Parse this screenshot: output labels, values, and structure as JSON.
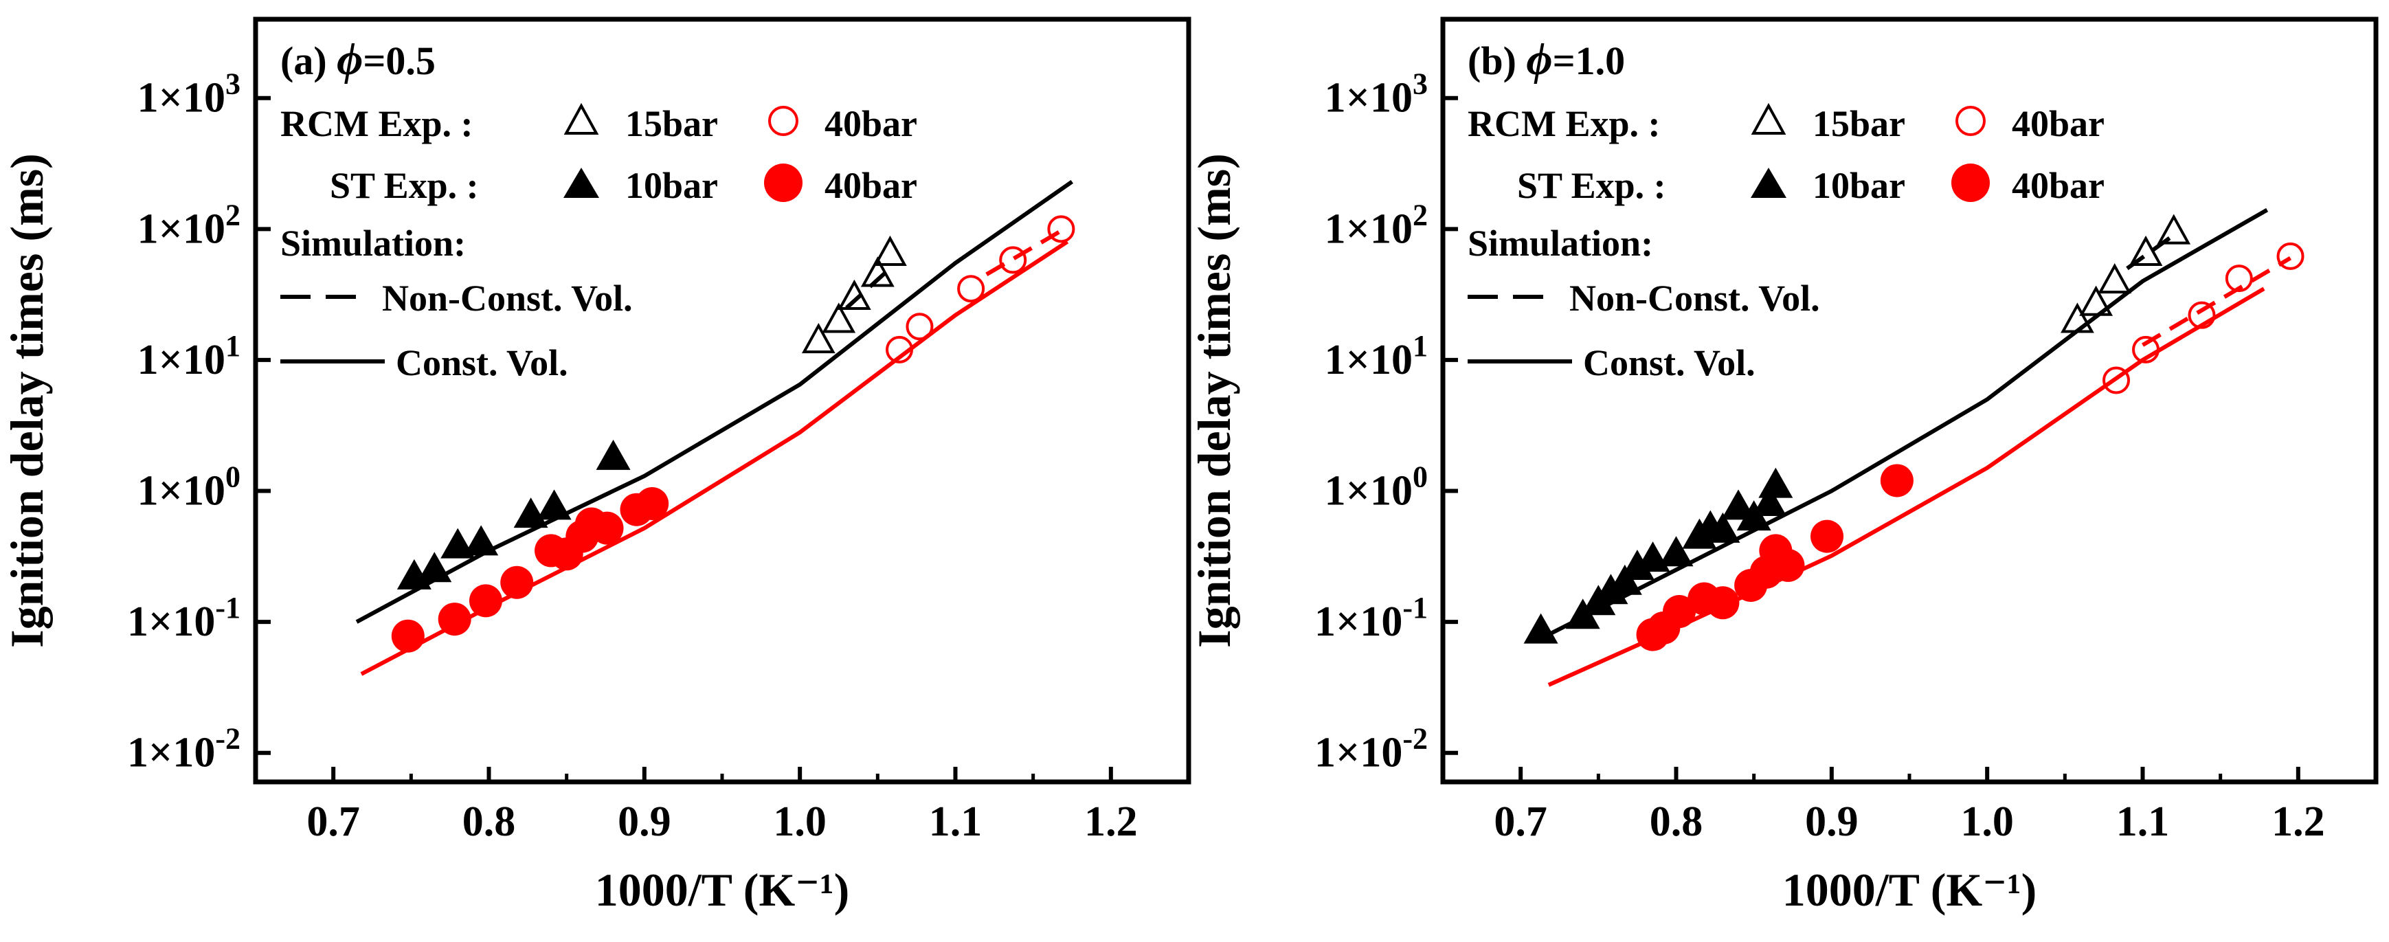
{
  "colors": {
    "black": "#000000",
    "red": "#ff0000",
    "background": "#ffffff"
  },
  "shared_ylabel": "Ignition delay times (ms)",
  "panels": [
    {
      "label_prefix": "(a) ",
      "phi_symbol": "ϕ",
      "phi_value": "=0.5",
      "legend": {
        "rcm_label": "RCM  Exp. :",
        "st_label": "ST  Exp. :",
        "rcm_15": "15bar",
        "rcm_40": "40bar",
        "st_10": "10bar",
        "st_40": "40bar",
        "simulation_title": "Simulation:",
        "nonconst_label": "Non-Const. Vol.",
        "const_label": "Const. Vol."
      }
    },
    {
      "label_prefix": "(b) ",
      "phi_symbol": "ϕ",
      "phi_value": "=1.0",
      "legend": {
        "rcm_label": "RCM  Exp. :",
        "st_label": "ST  Exp. :",
        "rcm_15": "15bar",
        "rcm_40": "40bar",
        "st_10": "10bar",
        "st_40": "40bar",
        "simulation_title": "Simulation:",
        "nonconst_label": "Non-Const. Vol.",
        "const_label": "Const. Vol."
      }
    }
  ],
  "chart_data": [
    {
      "type": "scatter",
      "title": "(a) ϕ=0.5",
      "xlabel": "1000/T (K⁻¹)",
      "ylabel": "Ignition delay times (ms)",
      "xlim": [
        0.65,
        1.25
      ],
      "ylim": [
        0.006,
        4000
      ],
      "yscale": "log",
      "xticks": [
        "0.7",
        "0.8",
        "0.9",
        "1.0",
        "1.1",
        "1.2"
      ],
      "yticks": [
        {
          "value": 0.01,
          "base": "1×10",
          "exp": "-2"
        },
        {
          "value": 0.1,
          "base": "1×10",
          "exp": "-1"
        },
        {
          "value": 1,
          "base": "1×10",
          "exp": "0"
        },
        {
          "value": 10,
          "base": "1×10",
          "exp": "1"
        },
        {
          "value": 100,
          "base": "1×10",
          "exp": "2"
        },
        {
          "value": 1000,
          "base": "1×10",
          "exp": "3"
        }
      ],
      "series": [
        {
          "name": "RCM Exp. 15bar",
          "marker": "triangle-open",
          "color": "#000000",
          "x": [
            1.012,
            1.025,
            1.035,
            1.05,
            1.058
          ],
          "y": [
            14,
            20,
            30,
            45,
            65
          ]
        },
        {
          "name": "RCM Exp. 40bar",
          "marker": "circle-open",
          "color": "#ff0000",
          "x": [
            1.064,
            1.077,
            1.11,
            1.137,
            1.168
          ],
          "y": [
            12,
            18,
            35,
            58,
            100
          ]
        },
        {
          "name": "ST Exp. 10bar",
          "marker": "triangle-filled",
          "color": "#000000",
          "x": [
            0.752,
            0.765,
            0.78,
            0.795,
            0.827,
            0.842,
            0.88
          ],
          "y": [
            0.22,
            0.25,
            0.38,
            0.4,
            0.65,
            0.75,
            1.8
          ]
        },
        {
          "name": "ST Exp. 40bar",
          "marker": "circle-filled",
          "color": "#ff0000",
          "x": [
            0.748,
            0.778,
            0.798,
            0.818,
            0.84,
            0.85,
            0.86,
            0.866,
            0.876,
            0.895,
            0.905
          ],
          "y": [
            0.078,
            0.105,
            0.145,
            0.2,
            0.35,
            0.33,
            0.45,
            0.56,
            0.52,
            0.72,
            0.8
          ]
        },
        {
          "name": "Const. Vol. (black)",
          "marker": "line-solid",
          "color": "#000000",
          "x": [
            0.715,
            0.8,
            0.9,
            1.0,
            1.1,
            1.175
          ],
          "y": [
            0.1,
            0.35,
            1.3,
            6.5,
            55,
            230
          ]
        },
        {
          "name": "Const. Vol. (red)",
          "marker": "line-solid",
          "color": "#ff0000",
          "x": [
            0.718,
            0.8,
            0.9,
            1.0,
            1.1,
            1.172
          ],
          "y": [
            0.04,
            0.13,
            0.52,
            2.8,
            22,
            80
          ]
        },
        {
          "name": "Non-Const. Vol. (black)",
          "marker": "line-dashed",
          "color": "#000000",
          "x": [
            1.03,
            1.058
          ],
          "y": [
            25,
            50
          ]
        },
        {
          "name": "Non-Const. Vol. (red)",
          "marker": "line-dashed",
          "color": "#ff0000",
          "x": [
            1.12,
            1.17
          ],
          "y": [
            45,
            100
          ]
        }
      ]
    },
    {
      "type": "scatter",
      "title": "(b) ϕ=1.0",
      "xlabel": "1000/T (K⁻¹)",
      "ylabel": "Ignition delay times (ms)",
      "xlim": [
        0.65,
        1.25
      ],
      "ylim": [
        0.006,
        4000
      ],
      "yscale": "log",
      "xticks": [
        "0.7",
        "0.8",
        "0.9",
        "1.0",
        "1.1",
        "1.2"
      ],
      "yticks": [
        {
          "value": 0.01,
          "base": "1×10",
          "exp": "-2"
        },
        {
          "value": 0.1,
          "base": "1×10",
          "exp": "-1"
        },
        {
          "value": 1,
          "base": "1×10",
          "exp": "0"
        },
        {
          "value": 10,
          "base": "1×10",
          "exp": "1"
        },
        {
          "value": 100,
          "base": "1×10",
          "exp": "2"
        },
        {
          "value": 1000,
          "base": "1×10",
          "exp": "3"
        }
      ],
      "series": [
        {
          "name": "RCM Exp. 15bar",
          "marker": "triangle-open",
          "color": "#000000",
          "x": [
            1.058,
            1.07,
            1.082,
            1.102,
            1.12
          ],
          "y": [
            20,
            27,
            40,
            65,
            95
          ]
        },
        {
          "name": "RCM Exp. 40bar",
          "marker": "circle-open",
          "color": "#ff0000",
          "x": [
            1.083,
            1.102,
            1.138,
            1.162,
            1.195
          ],
          "y": [
            7,
            12,
            22,
            42,
            62
          ]
        },
        {
          "name": "ST Exp. 10bar",
          "marker": "triangle-filled",
          "color": "#000000",
          "x": [
            0.713,
            0.74,
            0.75,
            0.758,
            0.767,
            0.775,
            0.785,
            0.8,
            0.815,
            0.822,
            0.83,
            0.84,
            0.85,
            0.86,
            0.864
          ],
          "y": [
            0.085,
            0.11,
            0.14,
            0.17,
            0.2,
            0.26,
            0.3,
            0.33,
            0.45,
            0.52,
            0.5,
            0.75,
            0.62,
            0.8,
            1.1
          ]
        },
        {
          "name": "ST Exp. 40bar",
          "marker": "circle-filled",
          "color": "#ff0000",
          "x": [
            0.785,
            0.792,
            0.802,
            0.818,
            0.83,
            0.848,
            0.858,
            0.864,
            0.872,
            0.897,
            0.942
          ],
          "y": [
            0.08,
            0.09,
            0.12,
            0.15,
            0.14,
            0.19,
            0.24,
            0.35,
            0.27,
            0.45,
            1.2
          ]
        },
        {
          "name": "Const. Vol. (black)",
          "marker": "line-solid",
          "color": "#000000",
          "x": [
            0.718,
            0.8,
            0.9,
            1.0,
            1.1,
            1.18
          ],
          "y": [
            0.08,
            0.25,
            1.0,
            5.0,
            40,
            140
          ]
        },
        {
          "name": "Const. Vol. (red)",
          "marker": "line-solid",
          "color": "#ff0000",
          "x": [
            0.718,
            0.8,
            0.9,
            1.0,
            1.1,
            1.178
          ],
          "y": [
            0.033,
            0.09,
            0.32,
            1.5,
            10,
            35
          ]
        },
        {
          "name": "Non-Const. Vol. (black)",
          "marker": "line-dashed",
          "color": "#000000",
          "x": [
            1.09,
            1.12
          ],
          "y": [
            50,
            90
          ]
        },
        {
          "name": "Non-Const. Vol. (red)",
          "marker": "line-dashed",
          "color": "#ff0000",
          "x": [
            1.1,
            1.195
          ],
          "y": [
            13,
            60
          ]
        }
      ]
    }
  ]
}
